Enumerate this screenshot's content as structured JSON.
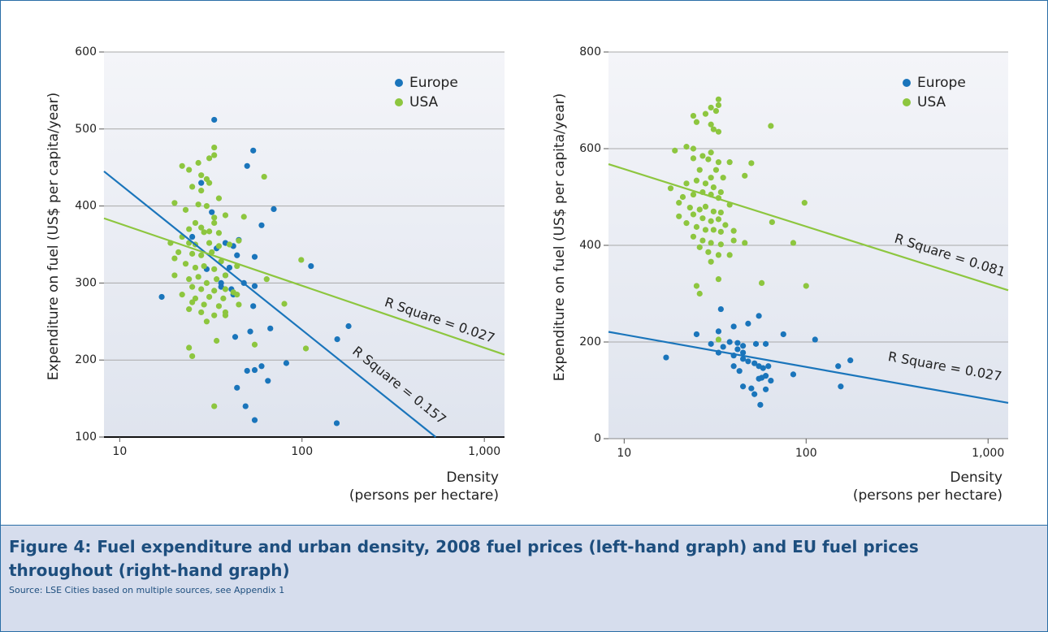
{
  "chart_data": [
    {
      "type": "scatter",
      "ylabel": "Expenditure on fuel (US$ per capita/year)",
      "xlabel": [
        "Density",
        "(persons per hectare)"
      ],
      "xscale": "log",
      "xlim": [
        8.2,
        1290
      ],
      "xticks": [
        10,
        100,
        {
          "value": 1000,
          "label": "1,000"
        }
      ],
      "ylim": [
        100,
        600
      ],
      "yticks": [
        100,
        200,
        300,
        400,
        500,
        600
      ],
      "grid": true,
      "legend": "upper right",
      "series": [
        {
          "name": "Europe",
          "color": "#1a75bb",
          "x": [
            33,
            54,
            50,
            70,
            28,
            32,
            60,
            25,
            38,
            45,
            42,
            44,
            55,
            30,
            40,
            38,
            112,
            36,
            41,
            42,
            48,
            55,
            54,
            52,
            43,
            67,
            156,
            180,
            82,
            60,
            55,
            50,
            44,
            65,
            17,
            49,
            55,
            155,
            34,
            36
          ],
          "values": [
            512,
            472,
            452,
            396,
            430,
            392,
            375,
            360,
            352,
            356,
            348,
            336,
            334,
            318,
            320,
            310,
            322,
            295,
            292,
            285,
            300,
            296,
            270,
            237,
            230,
            241,
            227,
            244,
            196,
            192,
            187,
            186,
            164,
            173,
            282,
            140,
            122,
            118,
            345,
            300
          ],
          "fit": {
            "x": [
              8.2,
              541
            ],
            "values": [
              445,
              100
            ]
          }
        },
        {
          "name": "USA",
          "color": "#8dc63f",
          "x": [
            33,
            33,
            31,
            22,
            24,
            27,
            28,
            30,
            25,
            31,
            62,
            28,
            35,
            20,
            27,
            30,
            23,
            33,
            38,
            48,
            26,
            33,
            24,
            28,
            31,
            35,
            29,
            22,
            19,
            24,
            26,
            31,
            35,
            40,
            45,
            21,
            25,
            28,
            32,
            20,
            23,
            26,
            29,
            33,
            36,
            44,
            20,
            24,
            27,
            30,
            34,
            38,
            64,
            99,
            25,
            28,
            33,
            38,
            22,
            26,
            31,
            37,
            42,
            25,
            29,
            35,
            45,
            80,
            24,
            28,
            33,
            38,
            30,
            34,
            55,
            105,
            24,
            25,
            33,
            38,
            44
          ],
          "values": [
            476,
            466,
            462,
            452,
            447,
            456,
            440,
            435,
            425,
            430,
            438,
            420,
            410,
            404,
            402,
            400,
            395,
            385,
            388,
            386,
            378,
            378,
            370,
            372,
            367,
            365,
            366,
            360,
            352,
            352,
            350,
            352,
            348,
            350,
            355,
            340,
            338,
            336,
            340,
            332,
            325,
            320,
            322,
            318,
            328,
            322,
            310,
            305,
            308,
            300,
            305,
            310,
            305,
            330,
            295,
            292,
            290,
            292,
            285,
            280,
            282,
            280,
            288,
            275,
            272,
            270,
            272,
            273,
            266,
            262,
            258,
            258,
            250,
            225,
            220,
            215,
            216,
            205,
            140,
            262,
            285
          ],
          "fit": {
            "x": [
              8.2,
              1290
            ],
            "values": [
              384,
              207
            ]
          }
        }
      ],
      "annotations": [
        "R Square = 0.027",
        "R Square = 0.157"
      ]
    },
    {
      "type": "scatter",
      "ylabel": "Expenditure on fuel (US$ per capita/year)",
      "xlabel": [
        "Density",
        "(persons per hectare)"
      ],
      "xscale": "log",
      "xlim": [
        8.2,
        1290
      ],
      "xticks": [
        10,
        100,
        {
          "value": 1000,
          "label": "1,000"
        }
      ],
      "ylim": [
        0,
        800
      ],
      "yticks": [
        0,
        200,
        400,
        600,
        800
      ],
      "grid": true,
      "legend": "upper right",
      "series": [
        {
          "name": "Europe",
          "color": "#1a75bb",
          "x": [
            34,
            55,
            48,
            40,
            25,
            33,
            75,
            112,
            30,
            38,
            42,
            45,
            53,
            60,
            35,
            42,
            45,
            40,
            48,
            52,
            55,
            58,
            62,
            40,
            60,
            57,
            55,
            64,
            85,
            17,
            150,
            175,
            155,
            45,
            50,
            60,
            52,
            56,
            43,
            45,
            33
          ],
          "values": [
            268,
            254,
            238,
            232,
            216,
            222,
            216,
            205,
            196,
            200,
            198,
            192,
            196,
            196,
            190,
            185,
            178,
            172,
            160,
            156,
            150,
            146,
            150,
            150,
            130,
            126,
            124,
            120,
            133,
            168,
            150,
            162,
            108,
            108,
            104,
            102,
            92,
            70,
            140,
            165,
            178
          ],
          "fit": {
            "x": [
              8.2,
              1290
            ],
            "values": [
              221,
              74
            ]
          }
        },
        {
          "name": "USA",
          "color": "#8dc63f",
          "x": [
            33,
            33,
            30,
            32,
            24,
            28,
            25,
            30,
            31,
            33,
            64,
            22,
            24,
            19,
            30,
            27,
            29,
            33,
            38,
            50,
            24,
            26,
            32,
            35,
            30,
            46,
            18,
            22,
            25,
            28,
            31,
            34,
            21,
            24,
            27,
            30,
            33,
            38,
            20,
            23,
            26,
            28,
            31,
            34,
            98,
            20,
            24,
            27,
            30,
            33,
            36,
            22,
            25,
            28,
            31,
            34,
            40,
            65,
            24,
            27,
            30,
            34,
            40,
            46,
            85,
            26,
            29,
            33,
            38,
            30,
            33,
            57,
            25,
            100,
            26,
            33
          ],
          "values": [
            702,
            690,
            685,
            678,
            668,
            672,
            655,
            650,
            640,
            635,
            647,
            604,
            600,
            596,
            592,
            585,
            578,
            572,
            572,
            570,
            580,
            556,
            556,
            540,
            540,
            544,
            518,
            528,
            534,
            528,
            520,
            510,
            500,
            505,
            510,
            505,
            498,
            484,
            488,
            478,
            474,
            480,
            470,
            468,
            488,
            460,
            464,
            456,
            450,
            454,
            442,
            446,
            438,
            432,
            432,
            428,
            430,
            448,
            418,
            410,
            405,
            402,
            410,
            405,
            405,
            396,
            386,
            380,
            380,
            366,
            330,
            322,
            316,
            316,
            300,
            205
          ],
          "fit": {
            "x": [
              8.2,
              1290
            ],
            "values": [
              568,
              307
            ]
          }
        }
      ],
      "annotations": [
        "R Square = 0.081",
        "R Square = 0.027"
      ]
    }
  ],
  "caption": {
    "title": "Figure 4: Fuel expenditure and urban density, 2008 fuel prices (left-hand graph) and EU fuel prices throughout (right-hand graph)",
    "source": "Source: LSE Cities based on multiple sources, see Appendix 1"
  }
}
